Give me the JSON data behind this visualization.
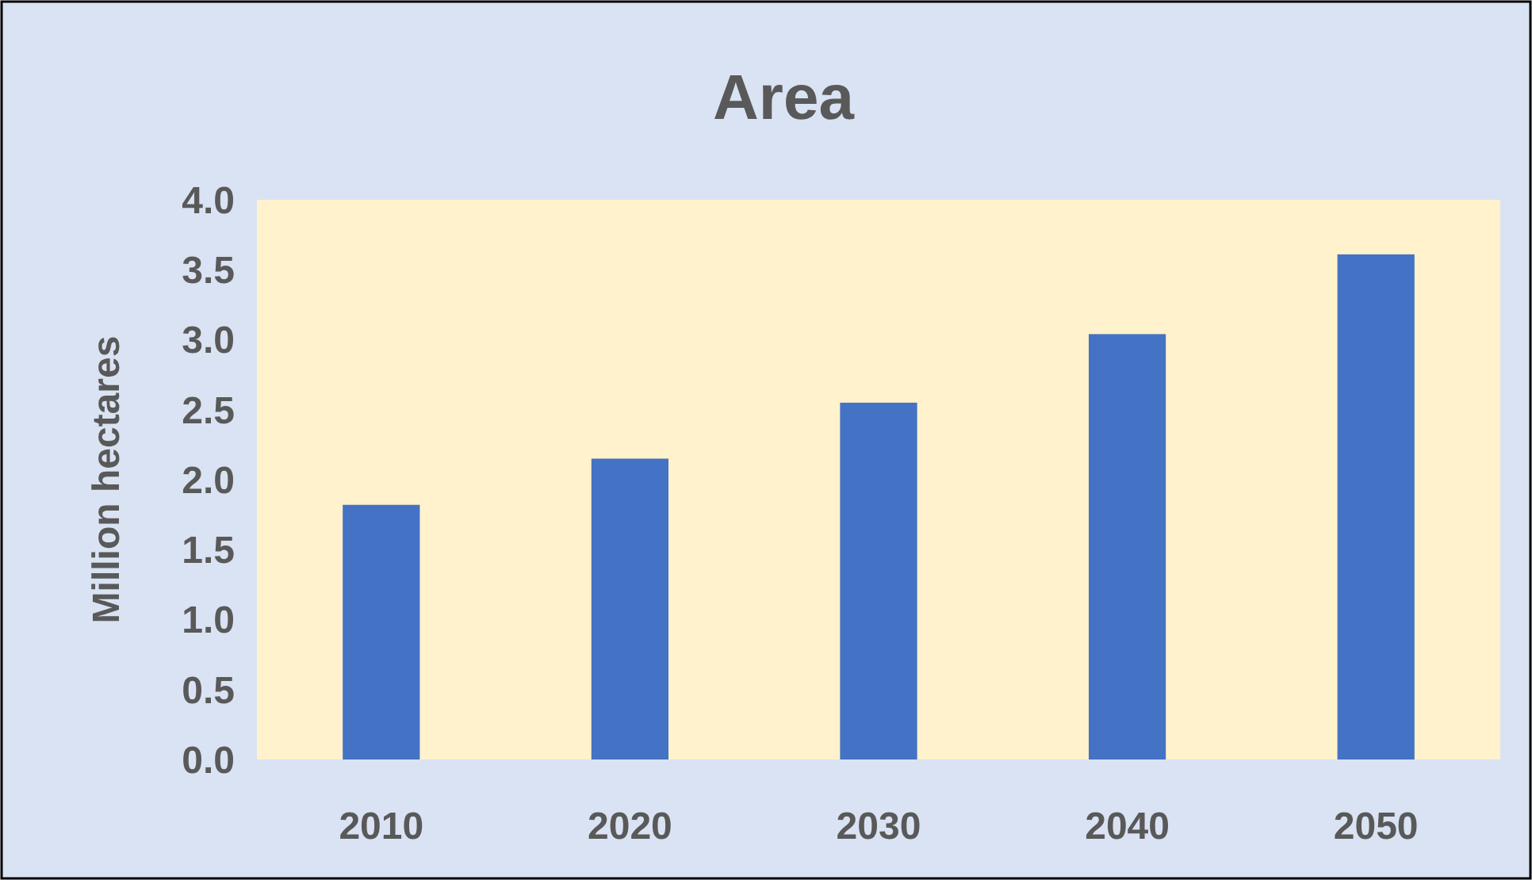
{
  "chart_data": {
    "type": "bar",
    "title": "Area",
    "ylabel": "Million hectares",
    "categories": [
      "2010",
      "2020",
      "2030",
      "2040",
      "2050"
    ],
    "values": [
      1.82,
      2.15,
      2.55,
      3.04,
      3.61
    ],
    "color": "#4472c4",
    "ylim": [
      0,
      4
    ],
    "yticks": [
      {
        "value": 0,
        "label": "0.0"
      },
      {
        "value": 0.5,
        "label": "0.5"
      },
      {
        "value": 1,
        "label": "1.0"
      },
      {
        "value": 1.5,
        "label": "1.5"
      },
      {
        "value": 2,
        "label": "2.0"
      },
      {
        "value": 2.5,
        "label": "2.5"
      },
      {
        "value": 3,
        "label": "3.0"
      },
      {
        "value": 3.5,
        "label": "3.5"
      },
      {
        "value": 4,
        "label": "4.0"
      }
    ],
    "grid": false
  }
}
